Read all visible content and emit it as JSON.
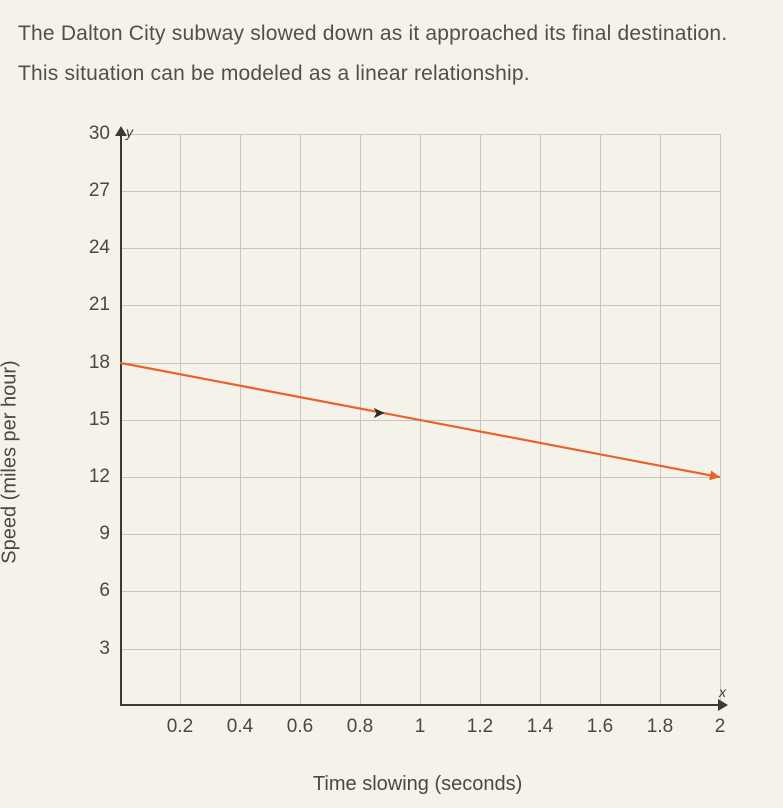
{
  "problem": {
    "line1": "The Dalton City subway slowed down as it approached its final destination.",
    "line2": "This situation can be modeled as a linear relationship."
  },
  "chart": {
    "type": "line",
    "x_label": "Time slowing (seconds)",
    "y_label": "Speed (miles per hour)",
    "y_axis_letter": "y",
    "x_axis_letter": "x",
    "xlim": [
      0,
      2
    ],
    "ylim": [
      0,
      30
    ],
    "x_ticks": [
      0.2,
      0.4,
      0.6,
      0.8,
      1,
      1.2,
      1.4,
      1.6,
      1.8,
      2
    ],
    "y_ticks": [
      3,
      6,
      9,
      12,
      15,
      18,
      21,
      24,
      27,
      30
    ],
    "grid_color": "#c8c5bb",
    "axis_color": "#3a3a38",
    "background_color": "#f5f2ea",
    "line": {
      "points": [
        [
          0,
          18
        ],
        [
          2,
          12
        ]
      ],
      "color": "#e8622a",
      "width": 2.2,
      "has_end_arrow": true
    },
    "label_fontsize": 20,
    "tick_fontsize": 19
  }
}
